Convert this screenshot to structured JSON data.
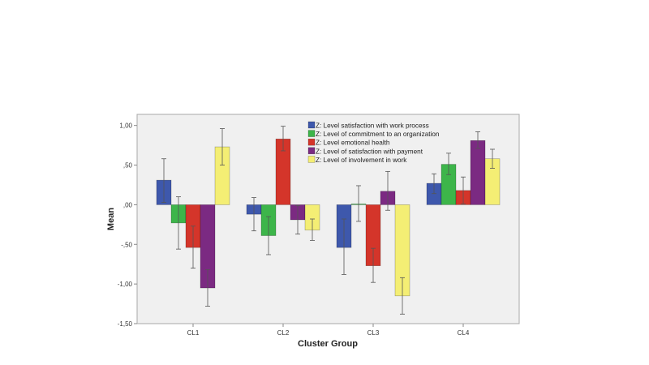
{
  "chart_data": {
    "type": "bar",
    "title": "",
    "xlabel": "Cluster Group",
    "ylabel": "Mean",
    "categories": [
      "CL1",
      "CL2",
      "CL3",
      "CL4"
    ],
    "ylim": [
      -1.5,
      1.14
    ],
    "yticks": [
      1.0,
      0.5,
      0.0,
      -0.5,
      -1.0,
      -1.5
    ],
    "ytick_labels": [
      "1,00",
      ",50",
      ",00",
      "-,50",
      "-1,00",
      "-1,50"
    ],
    "legend_position": "top-right",
    "error_bars": true,
    "series": [
      {
        "name": "Z: Level satisfaction with work process",
        "color": "#3e58ac",
        "values": [
          0.31,
          -0.12,
          -0.54,
          0.27
        ],
        "err_high": [
          0.58,
          0.09,
          -0.18,
          0.39
        ],
        "err_low": [
          0.03,
          -0.33,
          -0.88,
          0.14
        ]
      },
      {
        "name": "Z: Level of commitment to an organization",
        "color": "#3db54a",
        "values": [
          -0.23,
          -0.39,
          0.01,
          0.51
        ],
        "err_high": [
          0.1,
          -0.15,
          0.24,
          0.65
        ],
        "err_low": [
          -0.56,
          -0.63,
          -0.21,
          0.38
        ]
      },
      {
        "name": "Z: Level emotional health",
        "color": "#d4352a",
        "values": [
          -0.54,
          0.83,
          -0.77,
          0.18
        ],
        "err_high": [
          -0.27,
          0.99,
          -0.55,
          0.35
        ],
        "err_low": [
          -0.8,
          0.68,
          -0.98,
          0.01
        ]
      },
      {
        "name": "Z: Level of satisfaction with payment",
        "color": "#7b2a82",
        "values": [
          -1.05,
          -0.19,
          0.17,
          0.81
        ],
        "err_high": [
          -0.82,
          -0.01,
          0.42,
          0.92
        ],
        "err_low": [
          -1.28,
          -0.37,
          -0.07,
          0.71
        ]
      },
      {
        "name": "Z: Level of involvement in work",
        "color": "#f4ee74",
        "values": [
          0.73,
          -0.32,
          -1.15,
          0.58
        ],
        "err_high": [
          0.96,
          -0.18,
          -0.92,
          0.7
        ],
        "err_low": [
          0.5,
          -0.45,
          -1.38,
          0.46
        ]
      }
    ]
  }
}
